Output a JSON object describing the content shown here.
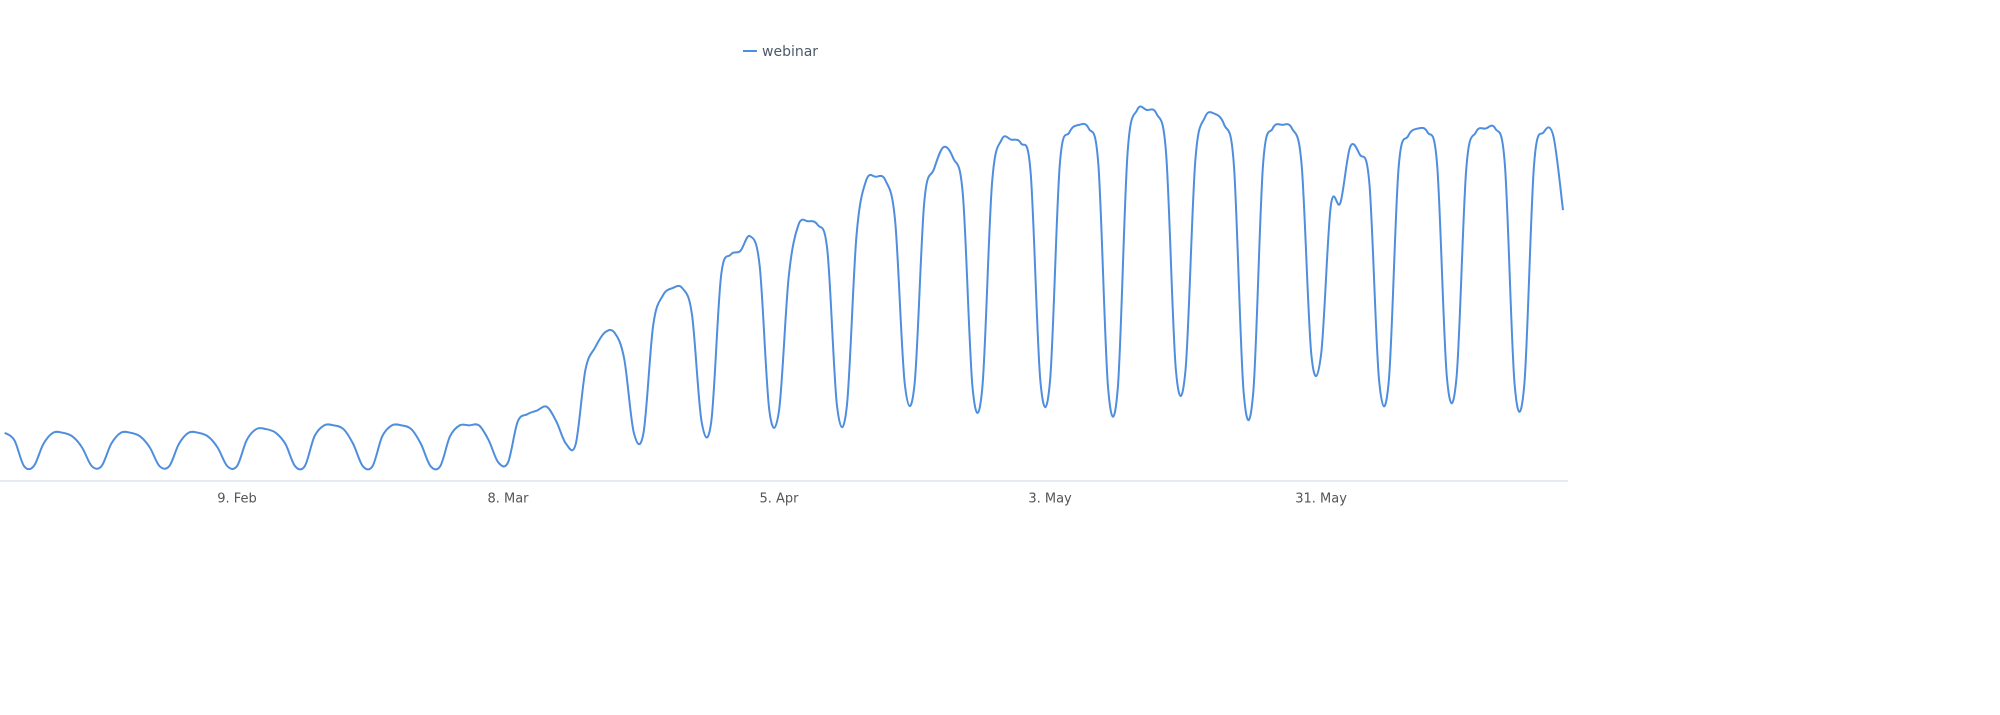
{
  "chart_data": {
    "type": "line",
    "categories": [
      null,
      null,
      null,
      null,
      null,
      null,
      null,
      null,
      null,
      null,
      null,
      null,
      null,
      null,
      null,
      null,
      null,
      null,
      null,
      null,
      null,
      null,
      null,
      null,
      "9. Feb",
      null,
      null,
      null,
      null,
      null,
      null,
      null,
      null,
      null,
      null,
      null,
      null,
      null,
      null,
      null,
      null,
      null,
      null,
      null,
      null,
      null,
      null,
      null,
      null,
      null,
      null,
      null,
      "8. Mar",
      null,
      null,
      null,
      null,
      null,
      null,
      null,
      null,
      null,
      null,
      null,
      null,
      null,
      null,
      null,
      null,
      null,
      null,
      null,
      null,
      null,
      null,
      null,
      null,
      null,
      null,
      null,
      "5. Apr",
      null,
      null,
      null,
      null,
      null,
      null,
      null,
      null,
      null,
      null,
      null,
      null,
      null,
      null,
      null,
      null,
      null,
      null,
      null,
      null,
      null,
      null,
      null,
      null,
      null,
      null,
      null,
      "3. May",
      null,
      null,
      null,
      null,
      null,
      null,
      null,
      null,
      null,
      null,
      null,
      null,
      null,
      null,
      null,
      null,
      null,
      null,
      null,
      null,
      null,
      null,
      null,
      null,
      null,
      null,
      null,
      "31. May",
      null,
      null,
      null,
      null,
      null,
      null,
      null,
      null,
      null,
      null,
      null,
      null,
      null,
      null,
      null,
      null,
      null,
      null,
      null,
      null,
      null,
      null,
      null,
      null,
      null
    ],
    "series": [
      {
        "name": "webinar",
        "color": "#4f8ede",
        "values": [
          13,
          11,
          4,
          4,
          10,
          13,
          13,
          12,
          9,
          4,
          4,
          10,
          13,
          13,
          12,
          9,
          4,
          4,
          10,
          13,
          13,
          12,
          9,
          4,
          4,
          11,
          14,
          14,
          13,
          10,
          4,
          4,
          12,
          15,
          15,
          14,
          10,
          4,
          4,
          12,
          15,
          15,
          14,
          10,
          4,
          4,
          12,
          15,
          15,
          15,
          11,
          5,
          5,
          16,
          18,
          19,
          20,
          16,
          10,
          10,
          30,
          36,
          40,
          40,
          33,
          13,
          13,
          42,
          50,
          52,
          52,
          45,
          16,
          16,
          55,
          61,
          62,
          66,
          58,
          19,
          19,
          55,
          69,
          70,
          69,
          62,
          20,
          20,
          66,
          81,
          82,
          81,
          70,
          26,
          26,
          75,
          84,
          90,
          87,
          77,
          25,
          25,
          80,
          92,
          92,
          91,
          83,
          27,
          27,
          85,
          94,
          96,
          95,
          85,
          25,
          25,
          88,
          100,
          100,
          99,
          88,
          30,
          30,
          86,
          98,
          99,
          96,
          85,
          24,
          24,
          85,
          95,
          96,
          95,
          85,
          34,
          34,
          74,
          75,
          90,
          88,
          80,
          27,
          27,
          84,
          93,
          95,
          94,
          85,
          28,
          28,
          84,
          94,
          95,
          95,
          85,
          26,
          26,
          85,
          94,
          93,
          73
        ]
      }
    ],
    "ylim": [
      0,
      100
    ],
    "legend": "top"
  }
}
